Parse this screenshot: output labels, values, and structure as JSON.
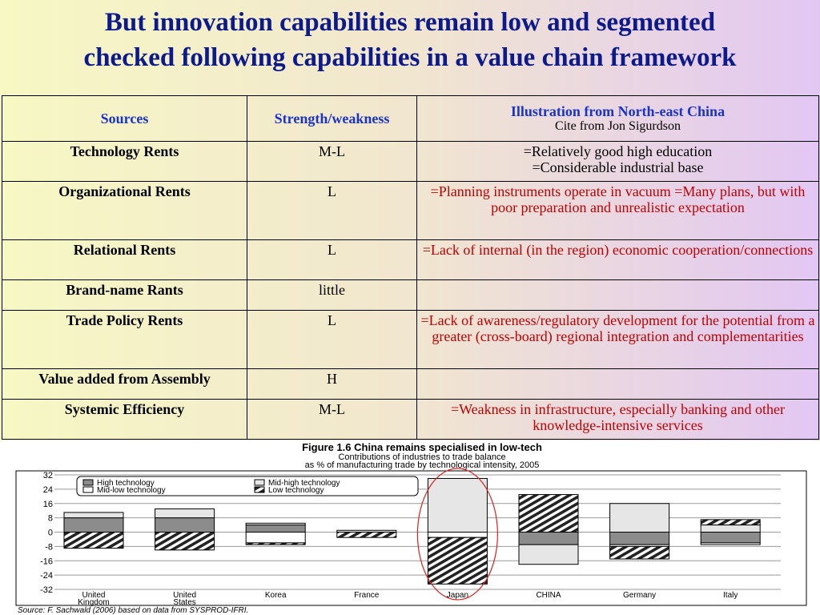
{
  "title": {
    "line1": "But innovation capabilities remain low and segmented",
    "line2": "checked following capabilities in a value chain framework"
  },
  "table": {
    "headers": {
      "sources": "Sources",
      "strength": "Strength/weakness",
      "illustration": "Illustration from North-east China",
      "illustration_sub": "Cite from Jon Sigurdson"
    },
    "rows": [
      {
        "source": "Technology Rents",
        "strength": "M-L",
        "illustration": "=Relatively good high education\n=Considerable industrial base",
        "color": "black"
      },
      {
        "source": "Organizational Rents",
        "strength": "L",
        "illustration": "=Planning instruments operate in vacuum =Many plans, but with poor preparation and unrealistic expectation",
        "color": "red"
      },
      {
        "source": "Relational Rents",
        "strength": "L",
        "illustration": "=Lack of internal (in the region) economic cooperation/connections",
        "color": "red"
      },
      {
        "source": "Brand-name Rants",
        "strength": "little",
        "illustration": "",
        "color": "red"
      },
      {
        "source": "Trade Policy Rents",
        "strength": "L",
        "illustration": "=Lack of awareness/regulatory development for the potential from a greater (cross-board) regional integration and complementarities",
        "color": "red"
      },
      {
        "source": "Value added from Assembly",
        "strength": "H",
        "illustration": "",
        "color": "red"
      },
      {
        "source": "Systemic Efficiency",
        "strength": "M-L",
        "illustration": "=Weakness in infrastructure, especially banking and other knowledge-intensive services",
        "color": "red"
      }
    ]
  },
  "chart_data": {
    "type": "bar",
    "stacked": true,
    "title": "Figure 1.6 China remains specialised in low-tech",
    "subtitle_line1": "Contributions of industries to trade balance",
    "subtitle_line2": "as % of manufacturing trade by technological intensity, 2005",
    "categories": [
      "United Kingdom",
      "United States",
      "Korea",
      "France",
      "Japan",
      "CHINA",
      "Germany",
      "Italy"
    ],
    "category_labels": [
      [
        "United",
        "Kingdom"
      ],
      [
        "United",
        "States"
      ],
      [
        "Korea"
      ],
      [
        "France"
      ],
      [
        "Japan"
      ],
      [
        "CHINA"
      ],
      [
        "Germany"
      ],
      [
        "Italy"
      ]
    ],
    "ylim": [
      -32,
      32
    ],
    "yticks": [
      32,
      24,
      16,
      8,
      0,
      -8,
      -16,
      -24,
      -32
    ],
    "ytick_labels": [
      "32",
      "24",
      "16",
      "8",
      "0",
      "-8",
      "-16",
      "-24",
      "-32"
    ],
    "series": [
      {
        "name": "High technology",
        "fill": "#8c8c8c",
        "values": [
          8,
          8,
          4,
          0,
          0,
          -7,
          -7,
          -6
        ]
      },
      {
        "name": "Mid-high technology",
        "fill": "#e6e6e6",
        "values": [
          3,
          5,
          1,
          1,
          30,
          -11,
          16,
          4
        ]
      },
      {
        "name": "Mid-low technology",
        "fill": "#ffffff",
        "values": [
          0,
          0,
          -6,
          0,
          -3,
          0,
          -1,
          -1
        ]
      },
      {
        "name": "Low technology",
        "fill": "hatch",
        "values": [
          -9,
          -10,
          -1,
          -3,
          -26,
          21,
          -7,
          3
        ]
      }
    ],
    "legend_position": "top-left",
    "grid": true,
    "highlight": {
      "category": "Japan",
      "shape": "ellipse",
      "color": "#e02020"
    },
    "source_note": "Source: F. Sachwald (2006) based on data from SYSPROD-IFRI."
  }
}
